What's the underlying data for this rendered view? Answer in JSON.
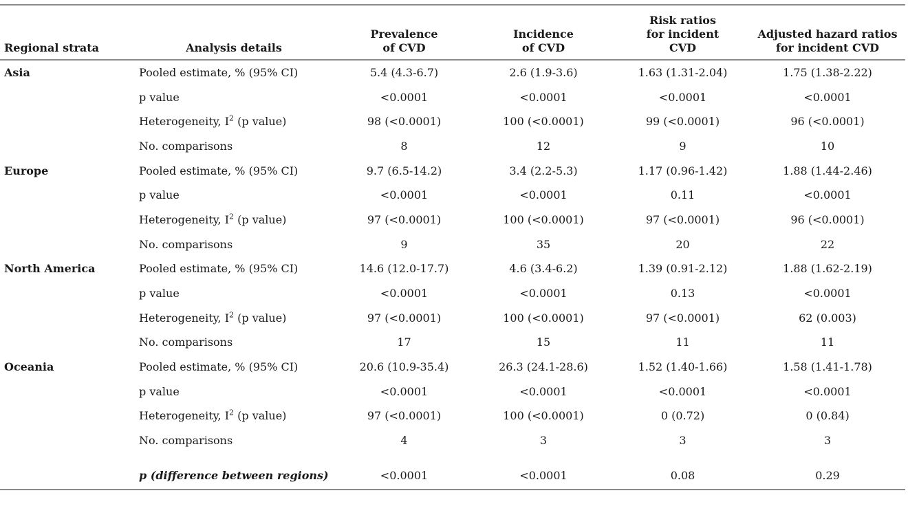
{
  "headers": {
    "region": "Regional strata",
    "details": "Analysis details",
    "prevalence": [
      "Prevalence",
      "of CVD"
    ],
    "incidence": [
      "Incidence",
      "of CVD"
    ],
    "risk_ratios": [
      "Risk ratios",
      "for incident",
      "CVD"
    ],
    "hazard_ratios": [
      "Adjusted hazard ratios",
      "for incident CVD"
    ]
  },
  "row_labels": {
    "pooled": "Pooled estimate, % (95% CI)",
    "p_value": "p value",
    "heterogeneity_prefix": "Heterogeneity, I",
    "heterogeneity_sup": "2",
    "heterogeneity_suffix": " (p value)",
    "comparisons": "No. comparisons"
  },
  "regions": [
    {
      "name": "Asia",
      "pooled": [
        "5.4 (4.3-6.7)",
        "2.6 (1.9-3.6)",
        "1.63 (1.31-2.04)",
        "1.75 (1.38-2.22)"
      ],
      "p_value": [
        "<0.0001",
        "<0.0001",
        "<0.0001",
        "<0.0001"
      ],
      "heterogeneity": [
        "98 (<0.0001)",
        "100 (<0.0001)",
        "99 (<0.0001)",
        "96 (<0.0001)"
      ],
      "comparisons": [
        "8",
        "12",
        "9",
        "10"
      ]
    },
    {
      "name": "Europe",
      "pooled": [
        "9.7 (6.5-14.2)",
        "3.4 (2.2-5.3)",
        "1.17 (0.96-1.42)",
        "1.88 (1.44-2.46)"
      ],
      "p_value": [
        "<0.0001",
        "<0.0001",
        "0.11",
        "<0.0001"
      ],
      "heterogeneity": [
        "97 (<0.0001)",
        "100 (<0.0001)",
        "97 (<0.0001)",
        "96 (<0.0001)"
      ],
      "comparisons": [
        "9",
        "35",
        "20",
        "22"
      ]
    },
    {
      "name": "North America",
      "pooled": [
        "14.6 (12.0-17.7)",
        "4.6 (3.4-6.2)",
        "1.39 (0.91-2.12)",
        "1.88 (1.62-2.19)"
      ],
      "p_value": [
        "<0.0001",
        "<0.0001",
        "0.13",
        "<0.0001"
      ],
      "heterogeneity": [
        "97 (<0.0001)",
        "100 (<0.0001)",
        "97 (<0.0001)",
        "62 (0.003)"
      ],
      "comparisons": [
        "17",
        "15",
        "11",
        "11"
      ]
    },
    {
      "name": "Oceania",
      "pooled": [
        "20.6 (10.9-35.4)",
        "26.3 (24.1-28.6)",
        "1.52 (1.40-1.66)",
        "1.58 (1.41-1.78)"
      ],
      "p_value": [
        "<0.0001",
        "<0.0001",
        "<0.0001",
        "<0.0001"
      ],
      "heterogeneity": [
        "97 (<0.0001)",
        "100 (<0.0001)",
        "0 (0.72)",
        "0 (0.84)"
      ],
      "comparisons": [
        "4",
        "3",
        "3",
        "3"
      ]
    }
  ],
  "difference": {
    "label": "p (difference between regions)",
    "values": [
      "<0.0001",
      "<0.0001",
      "0.08",
      "0.29"
    ]
  }
}
